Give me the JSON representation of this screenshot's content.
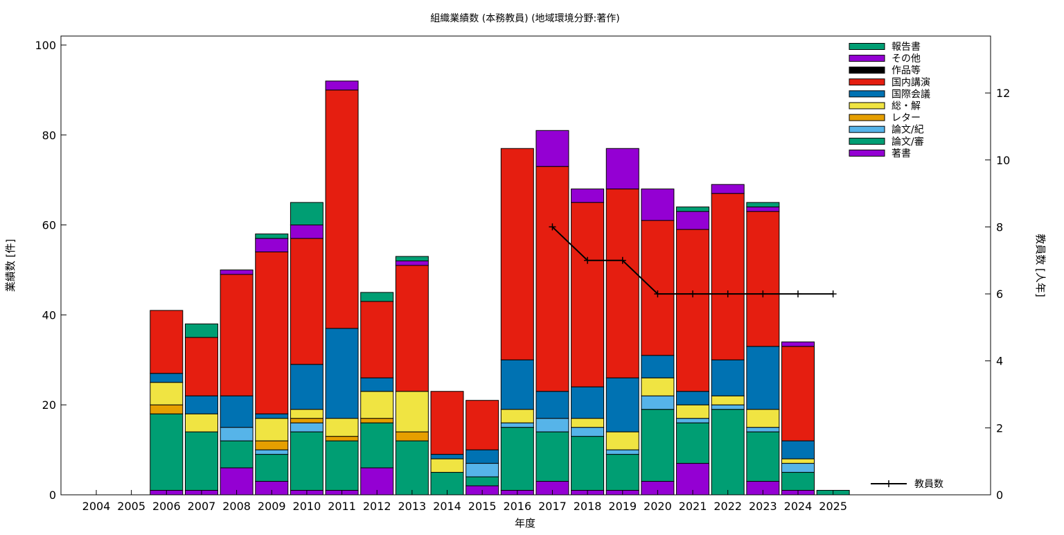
{
  "chart_data": {
    "type": "bar",
    "stacked": true,
    "title": "組織業績数 (本務教員) (地域環境分野:著作)",
    "xlabel": "年度",
    "ylabel": "業績数 [件]",
    "y2label": "教員数 [人年]",
    "ylim": [
      0,
      102
    ],
    "y2lim": [
      0,
      13.7
    ],
    "yticks": [
      0,
      20,
      40,
      60,
      80,
      100
    ],
    "y2ticks": [
      0,
      2,
      4,
      6,
      8,
      10,
      12
    ],
    "grid": false,
    "legend_position": "top-right",
    "categories": [
      "2004",
      "2005",
      "2006",
      "2007",
      "2008",
      "2009",
      "2010",
      "2011",
      "2012",
      "2013",
      "2014",
      "2015",
      "2016",
      "2017",
      "2018",
      "2019",
      "2020",
      "2021",
      "2022",
      "2023",
      "2024",
      "2025"
    ],
    "series": [
      {
        "name": "著書",
        "color": "#9400d3",
        "values": [
          0,
          0,
          1,
          1,
          6,
          3,
          1,
          1,
          6,
          0,
          0,
          2,
          1,
          3,
          1,
          1,
          3,
          7,
          0,
          3,
          1,
          0
        ]
      },
      {
        "name": "論文/審",
        "color": "#009e73",
        "values": [
          0,
          0,
          17,
          13,
          6,
          6,
          13,
          11,
          10,
          12,
          5,
          2,
          14,
          11,
          12,
          8,
          16,
          9,
          19,
          11,
          4,
          1
        ]
      },
      {
        "name": "論文/紀",
        "color": "#56b4e9",
        "values": [
          0,
          0,
          0,
          0,
          3,
          1,
          2,
          0,
          0,
          0,
          0,
          3,
          1,
          3,
          2,
          1,
          3,
          1,
          1,
          1,
          2,
          0
        ]
      },
      {
        "name": "レター",
        "color": "#e69f00",
        "values": [
          0,
          0,
          2,
          0,
          0,
          2,
          1,
          1,
          1,
          2,
          0,
          0,
          0,
          0,
          0,
          0,
          0,
          0,
          0,
          0,
          0,
          0
        ]
      },
      {
        "name": "総・解",
        "color": "#f0e442",
        "values": [
          0,
          0,
          5,
          4,
          0,
          5,
          2,
          4,
          6,
          9,
          3,
          0,
          3,
          0,
          2,
          4,
          4,
          3,
          2,
          4,
          1,
          0
        ]
      },
      {
        "name": "国際会議",
        "color": "#0072b2",
        "values": [
          0,
          0,
          2,
          4,
          7,
          1,
          10,
          20,
          3,
          0,
          1,
          3,
          11,
          6,
          7,
          12,
          5,
          3,
          8,
          14,
          4,
          0
        ]
      },
      {
        "name": "国内講演",
        "color": "#e51e10",
        "values": [
          0,
          0,
          14,
          13,
          27,
          36,
          28,
          53,
          17,
          28,
          14,
          11,
          47,
          50,
          41,
          42,
          30,
          36,
          37,
          30,
          21,
          0
        ]
      },
      {
        "name": "作品等",
        "color": "#000000",
        "values": [
          0,
          0,
          0,
          0,
          0,
          0,
          0,
          0,
          0,
          0,
          0,
          0,
          0,
          0,
          0,
          0,
          0,
          0,
          0,
          0,
          0,
          0
        ]
      },
      {
        "name": "その他",
        "color": "#9400d3",
        "values": [
          0,
          0,
          0,
          0,
          1,
          3,
          3,
          2,
          0,
          1,
          0,
          0,
          0,
          8,
          3,
          9,
          7,
          4,
          2,
          1,
          1,
          0
        ]
      },
      {
        "name": "報告書",
        "color": "#009e73",
        "values": [
          0,
          0,
          0,
          3,
          0,
          1,
          5,
          0,
          2,
          1,
          0,
          0,
          0,
          0,
          0,
          0,
          0,
          1,
          0,
          1,
          0,
          0
        ]
      }
    ],
    "line_series": {
      "name": "教員数",
      "axis": "y2",
      "color": "#000000",
      "x": [
        "2017",
        "2018",
        "2019",
        "2020",
        "2021",
        "2022",
        "2023",
        "2024",
        "2025"
      ],
      "values": [
        8,
        7,
        7,
        6,
        6,
        6,
        6,
        6,
        6
      ]
    }
  }
}
